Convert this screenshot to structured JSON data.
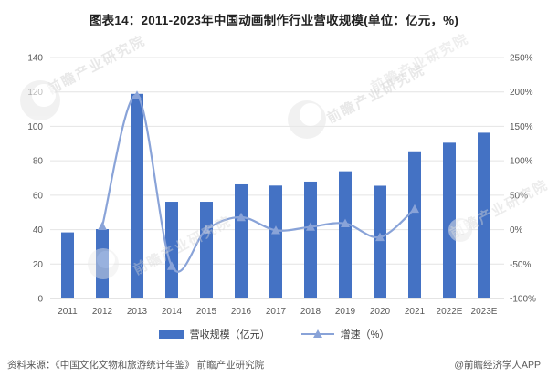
{
  "title": "图表14：2011-2023年中国动画制作行业营收规模(单位：亿元，%)",
  "source": {
    "left": "资料来源：《中国文化文物和旅游统计年鉴》 前瞻产业研究院",
    "right": "@前瞻经济学人APP"
  },
  "watermark": {
    "text": "前瞻产业研究院"
  },
  "chart_data": {
    "type": "bar",
    "combo": [
      "bar",
      "line"
    ],
    "title": "图表14：2011-2023年中国动画制作行业营收规模(单位：亿元，%)",
    "categories": [
      "2011",
      "2012",
      "2013",
      "2014",
      "2015",
      "2016",
      "2017",
      "2018",
      "2019",
      "2020",
      "2021",
      "2022E",
      "2023E"
    ],
    "series": [
      {
        "name": "营收规模（亿元）",
        "type": "bar",
        "axis": "left",
        "color": "#4472C4",
        "values": [
          38.4,
          40.3,
          118.9,
          56.2,
          56.2,
          66.3,
          65.6,
          67.9,
          73.9,
          65.5,
          85.5,
          90.5,
          96.3
        ]
      },
      {
        "name": "增速（%）",
        "type": "line",
        "axis": "right",
        "color": "#89A3D8",
        "marker": "triangle",
        "values": [
          null,
          5,
          195,
          -53,
          0,
          18,
          -1,
          4,
          9,
          -11,
          30,
          null,
          null
        ]
      }
    ],
    "left_axis": {
      "min": 0,
      "max": 140,
      "step": 20,
      "ticks": [
        "0",
        "20",
        "40",
        "60",
        "80",
        "100",
        "120",
        "140"
      ]
    },
    "right_axis": {
      "min": -100,
      "max": 250,
      "step": 50,
      "ticks": [
        "-100%",
        "-50%",
        "0%",
        "50%",
        "100%",
        "150%",
        "200%",
        "250%"
      ]
    },
    "grid": true,
    "legend_position": "bottom",
    "axis_text_color": "#595959",
    "gridline_color": "#e4e4e4",
    "baseline_color": "#c9c9c9"
  }
}
